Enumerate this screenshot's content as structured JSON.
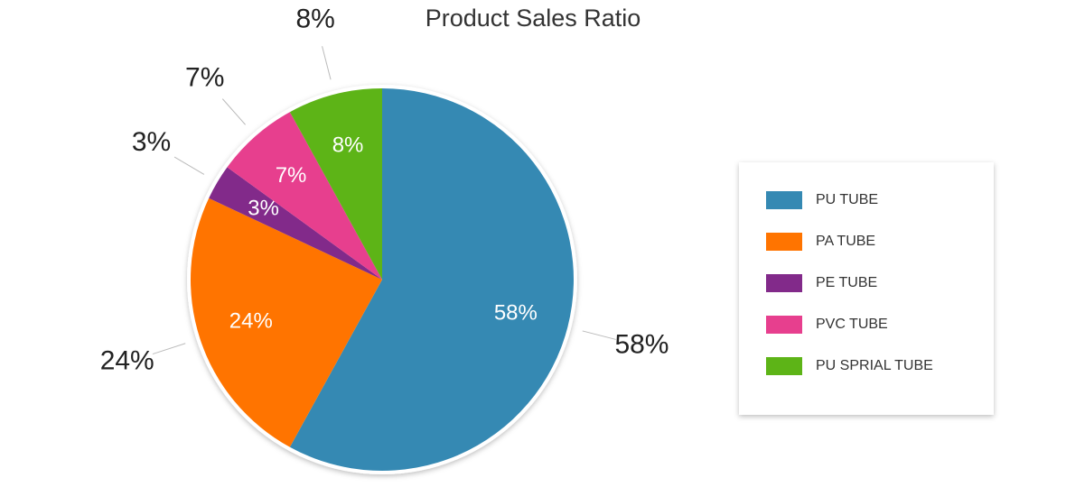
{
  "chart_data": {
    "type": "pie",
    "title": "Product Sales Ratio",
    "categories": [
      "PU TUBE",
      "PA TUBE",
      "PE TUBE",
      "PVC TUBE",
      "PU SPRIAL TUBE"
    ],
    "values": [
      58,
      24,
      3,
      7,
      8
    ],
    "value_labels": [
      "58%",
      "24%",
      "3%",
      "7%",
      "8%"
    ],
    "colors": [
      "#3589b3",
      "#ff7400",
      "#822a8a",
      "#e73f8e",
      "#5db417"
    ],
    "legend": "right"
  }
}
